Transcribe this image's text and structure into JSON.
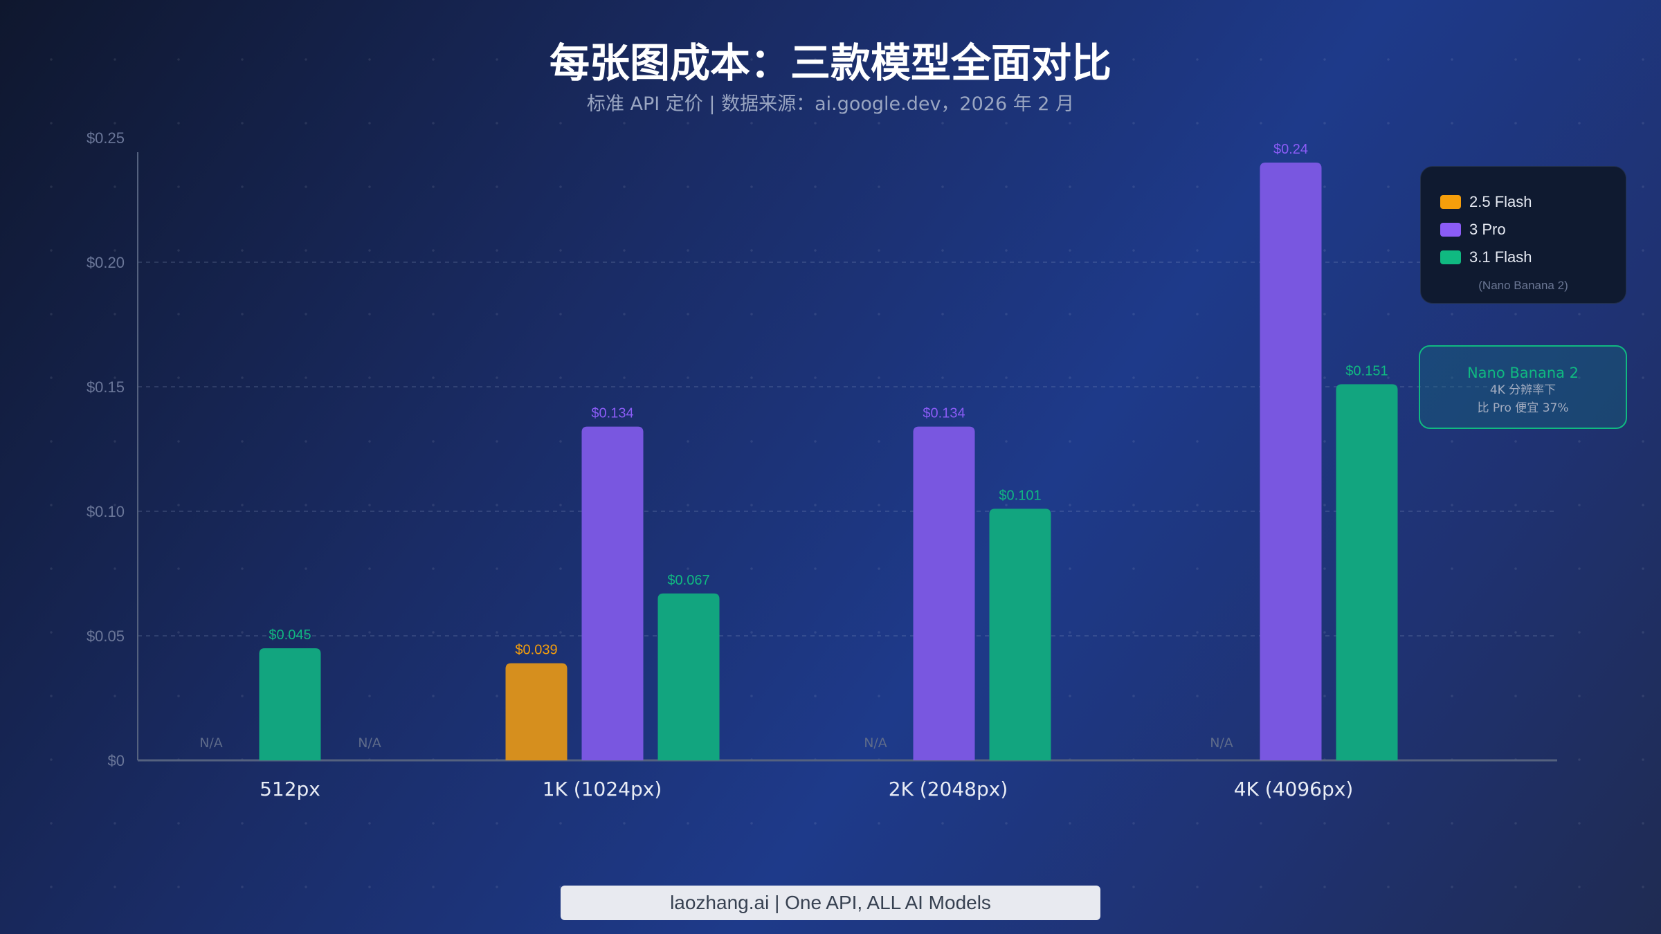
{
  "chart_data": {
    "type": "bar",
    "title": "每张图成本：三款模型全面对比",
    "subtitle": "标准 API 定价 | 数据来源：ai.google.dev，2026 年 2 月",
    "categories": [
      "512px",
      "1K (1024px)",
      "2K (2048px)",
      "4K (4096px)"
    ],
    "series": [
      {
        "name": "2.5 Flash",
        "color": "#f59e0b",
        "bar_color": "#d68f1e",
        "values": [
          null,
          0.039,
          null,
          null
        ]
      },
      {
        "name": "3 Pro",
        "color": "#8b5cf6",
        "bar_color": "#7957e0",
        "values": [
          null,
          0.134,
          0.134,
          0.24
        ]
      },
      {
        "name": "3.1 Flash",
        "color": "#10b981",
        "bar_color": "#12a57f",
        "values": [
          0.045,
          0.067,
          0.101,
          0.151
        ]
      }
    ],
    "value_labels": [
      [
        "N/A",
        "$0.039",
        "N/A",
        "N/A"
      ],
      [
        "N/A",
        "$0.134",
        "$0.134",
        "$0.24"
      ],
      [
        "$0.045",
        "$0.067",
        "$0.101",
        "$0.151"
      ]
    ],
    "na_label": "N/A",
    "yticks": [
      0,
      0.05,
      0.1,
      0.15,
      0.2,
      0.25
    ],
    "ytick_labels": [
      "$0",
      "$0.05",
      "$0.10",
      "$0.15",
      "$0.20",
      "$0.25"
    ],
    "ylim": [
      0,
      0.25
    ],
    "grid": "horizontal dashed",
    "legend_placement": "right",
    "xlabel": "",
    "ylabel": ""
  },
  "legend": {
    "items": [
      "2.5 Flash",
      "3 Pro",
      "3.1 Flash"
    ],
    "note": "(Nano Banana 2)"
  },
  "callout": {
    "title": "Nano Banana 2",
    "line1": "4K 分辨率下",
    "line2": "比 Pro 便宜 37%"
  },
  "footer": "laozhang.ai | One API, ALL AI Models"
}
